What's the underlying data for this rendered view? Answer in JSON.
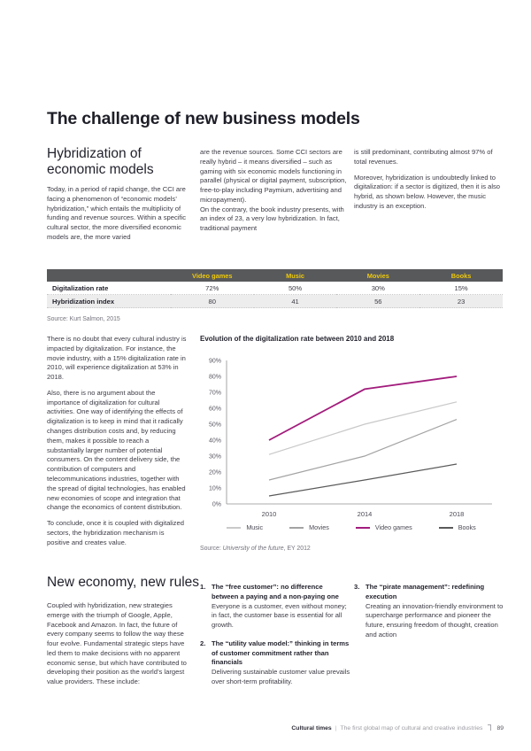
{
  "page_title": "The challenge of new business models",
  "section_hybridization": {
    "heading": "Hybridization of economic models",
    "col1": "Today, in a period of rapid change, the CCI are facing a phenomenon of “economic models’ hybridization,” which entails the multiplicity of funding and revenue sources. Within a specific cultural sector, the more diversified economic models are, the more varied",
    "col2_p1": "are the revenue sources. Some CCI sectors are really hybrid – it means diversified – such as gaming with six economic models functioning in parallel (physical or digital payment, subscription, free-to-play including Paymium, advertising and micropayment).",
    "col2_p2": "On the contrary, the book industry presents, with an index of 23, a very low hybridization. In fact, traditional payment",
    "col3_p1": "is still predominant, contributing almost 97% of total revenues.",
    "col3_p2": "Moreover, hybridization is undoubtedly linked to digitalization: if a sector is digitized, then it is also hybrid, as shown below. However, the music industry is an exception."
  },
  "table": {
    "columns": [
      "Video games",
      "Music",
      "Movies",
      "Books"
    ],
    "rows": [
      {
        "label": "Digitalization rate",
        "values": [
          "72%",
          "50%",
          "30%",
          "15%"
        ]
      },
      {
        "label": "Hybridization index",
        "values": [
          "80",
          "41",
          "56",
          "23"
        ]
      }
    ],
    "source": "Source: Kurt Salmon, 2015",
    "header_bg": "#58595b",
    "header_text_color": "#eec90a"
  },
  "left_column": {
    "p1": "There is no doubt that every cultural industry is impacted by digitalization. For instance, the movie industry, with a 15% digitalization rate in 2010, will experience digitalization at 53% in 2018.",
    "p2": "Also, there is no argument about the importance of digitalization for cultural activities. One way of identifying the effects of digitalization is to keep in mind that it radically changes distribution costs and, by reducing them, makes it possible to reach a substantially larger number of potential consumers. On the content delivery side, the contribution of computers and telecommunications industries, together with the spread of digital technologies, has enabled new economies of scope and integration that change the economics of content distribution.",
    "p3": "To conclude, once it is coupled with digitalized sectors, the hybridization mechanism is positive and creates value."
  },
  "chart_data": {
    "type": "line",
    "title": "Evolution of the digitalization rate between 2010 and 2018",
    "x": [
      "2010",
      "2014",
      "2018"
    ],
    "series": [
      {
        "name": "Music",
        "values": [
          31,
          50,
          64
        ],
        "color": "#c9c9c9"
      },
      {
        "name": "Movies",
        "values": [
          15,
          30,
          53
        ],
        "color": "#a3a3a3"
      },
      {
        "name": "Video games",
        "values": [
          40,
          72,
          80
        ],
        "color": "#a21c7c"
      },
      {
        "name": "Books",
        "values": [
          5,
          15,
          25
        ],
        "color": "#5a5a5a"
      }
    ],
    "ylim": [
      0,
      90
    ],
    "ytick_step": 10,
    "ytick_suffix": "%",
    "grid": false,
    "legend_position": "bottom",
    "source_label": "Source: ",
    "source_italic": "University of the future",
    "source_rest": ", EY 2012"
  },
  "section_new_economy": {
    "heading": "New economy, new rules",
    "intro": "Coupled with hybridization, new strategies emerge with the triumph of Google, Apple, Facebook and Amazon. In fact, the future of every company seems to follow the way these four evolve. Fundamental strategic steps have led them to make decisions with no apparent economic sense, but which have contributed to developing their position as the world’s largest value providers. These include:",
    "items": [
      {
        "number": "1.",
        "title": "The “free customer”: no difference between a paying and a non-paying one",
        "body": "Everyone is a customer, even without money; in fact, the customer base is essential for all growth."
      },
      {
        "number": "2.",
        "title": "The “utility value model:” thinking in terms of customer commitment rather than financials",
        "body": "Delivering sustainable customer value prevails over short-term profitability."
      },
      {
        "number": "3.",
        "title": "The “pirate management”: redefining execution",
        "body": "Creating an innovation-friendly environment to supercharge performance and pioneer the future, ensuring freedom of thought, creation and action"
      }
    ]
  },
  "footer": {
    "brand": "Cultural times",
    "divider": "|",
    "subtitle": "The first global map of cultural and creative industries",
    "page_number": "89"
  }
}
